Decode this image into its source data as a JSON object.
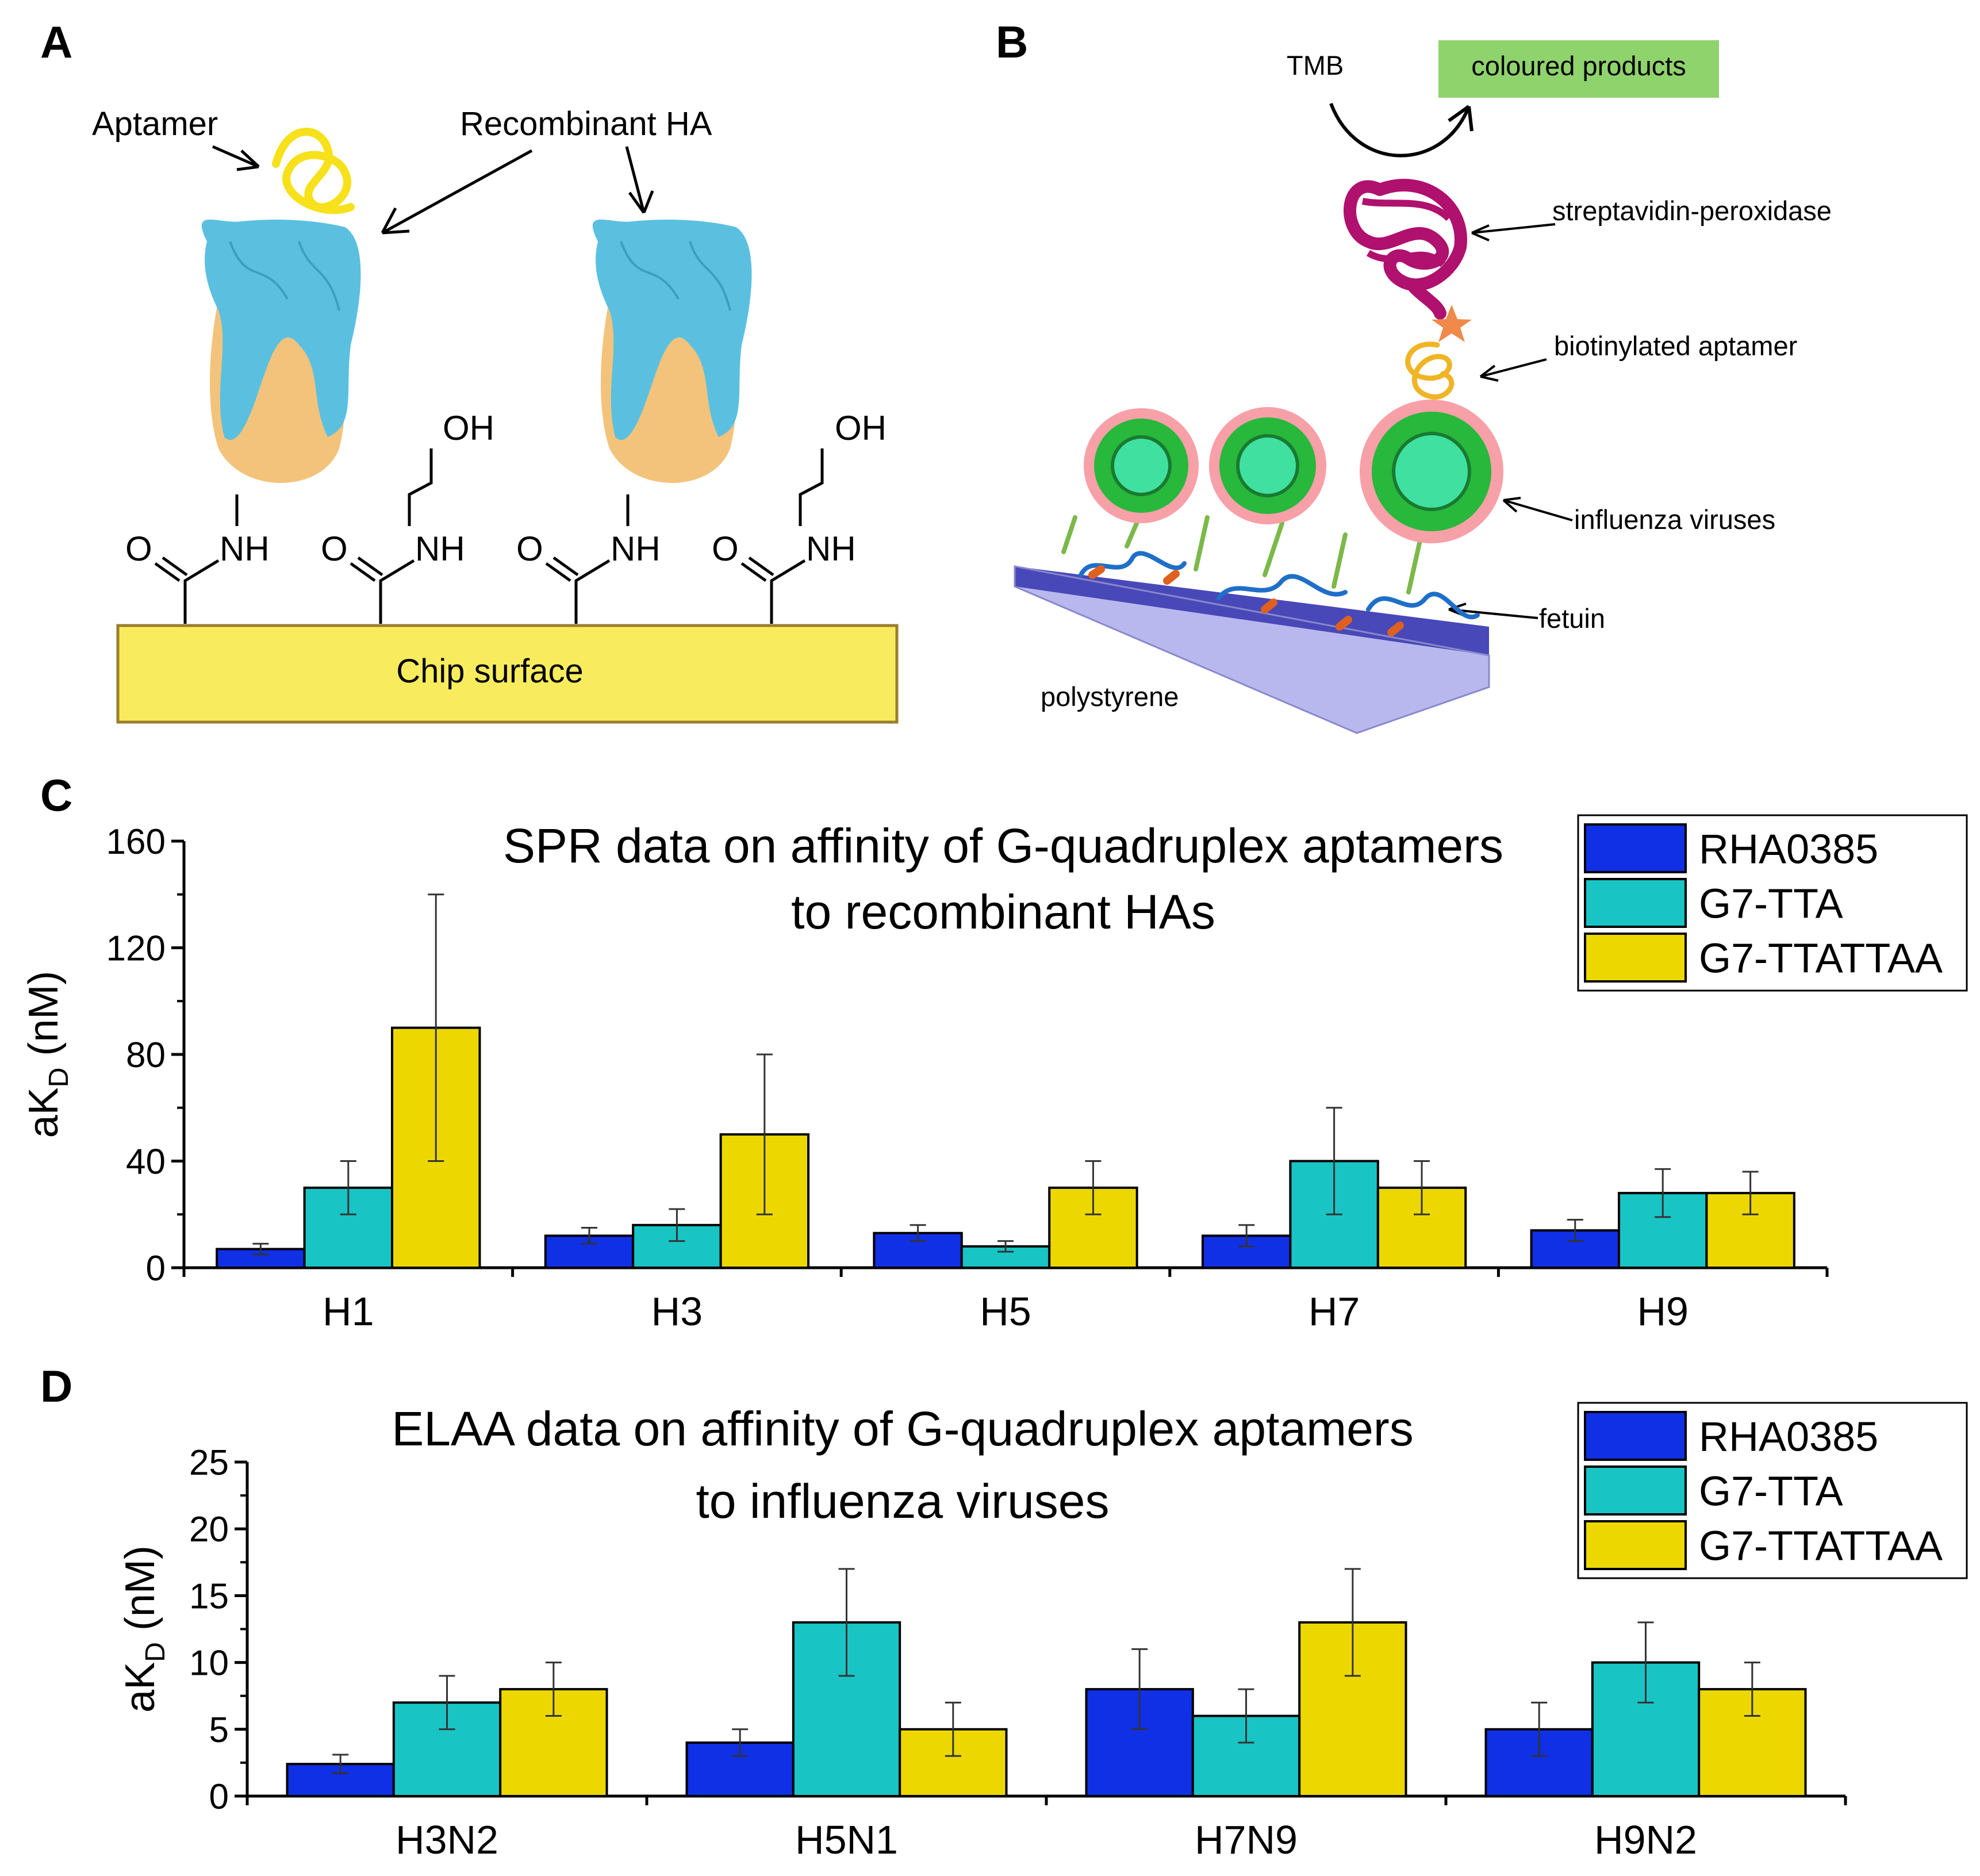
{
  "panels": {
    "a": {
      "letter": "A",
      "aptamer_label": "Aptamer",
      "recombinant_label": "Recombinant HA",
      "chip_label": "Chip surface",
      "chem": {
        "oh": "OH",
        "nh": "NH",
        "o": "O"
      }
    },
    "b": {
      "letter": "B",
      "tmb": "TMB",
      "coloured": "coloured products",
      "streptavidin": "streptavidin-peroxidase",
      "biotinylated": "biotinylated aptamer",
      "influenza": "influenza viruses",
      "fetuin": "fetuin",
      "polystyrene": "polystyrene"
    },
    "c": {
      "letter": "C"
    },
    "d": {
      "letter": "D"
    }
  },
  "colors": {
    "rha0385": "#1030e6",
    "g7_tta": "#19c4c4",
    "g7_ttattaa": "#ecd800",
    "chip": "#f8ec5e",
    "ha_blue": "#5bc0e0",
    "ha_orange": "#f3c37c",
    "aptamer_yellow": "#f6e11a",
    "green_box": "#8fd36c",
    "magenta": "#b0106e",
    "virus_green": "#27b83c",
    "spike_pink": "#f7a0a8",
    "plate": "#9e9ee6"
  },
  "chart_data": [
    {
      "type": "bar",
      "panel": "C",
      "title_line1": "SPR data on affinity of G-quadruplex aptamers",
      "title_line2": "to recombinant HAs",
      "ylabel_main": "aK",
      "ylabel_sub": "D",
      "ylabel_unit": " (nM)",
      "ylim": [
        0,
        160
      ],
      "yticks": [
        "0",
        "40",
        "80",
        "120",
        "160"
      ],
      "categories": [
        "H1",
        "H3",
        "H5",
        "H7",
        "H9"
      ],
      "legend_position": "top-right",
      "series": [
        {
          "name": "RHA0385",
          "values": [
            7,
            12,
            13,
            12,
            14
          ],
          "errors": [
            2,
            3,
            3,
            4,
            4
          ]
        },
        {
          "name": "G7-TTA",
          "values": [
            30,
            16,
            8,
            40,
            28
          ],
          "errors": [
            10,
            6,
            2,
            20,
            9
          ]
        },
        {
          "name": "G7-TTATTAA",
          "values": [
            90,
            50,
            30,
            30,
            28
          ],
          "errors": [
            50,
            30,
            10,
            10,
            8
          ]
        }
      ]
    },
    {
      "type": "bar",
      "panel": "D",
      "title_line1": "ELAA data on affinity of G-quadruplex aptamers",
      "title_line2": "to influenza viruses",
      "ylabel_main": "aK",
      "ylabel_sub": "D",
      "ylabel_unit": " (nM)",
      "ylim": [
        0,
        25
      ],
      "yticks": [
        "0",
        "5",
        "10",
        "15",
        "20",
        "25"
      ],
      "categories": [
        "H3N2",
        "H5N1",
        "H7N9",
        "H9N2"
      ],
      "legend_position": "top-right",
      "series": [
        {
          "name": "RHA0385",
          "values": [
            2.4,
            4,
            8,
            5
          ],
          "errors": [
            0.7,
            1,
            3,
            2
          ]
        },
        {
          "name": "G7-TTA",
          "values": [
            7,
            13,
            6,
            10
          ],
          "errors": [
            2,
            4,
            2,
            3
          ]
        },
        {
          "name": "G7-TTATTAA",
          "values": [
            8,
            5,
            13,
            8
          ],
          "errors": [
            2,
            2,
            4,
            2
          ]
        }
      ]
    }
  ]
}
